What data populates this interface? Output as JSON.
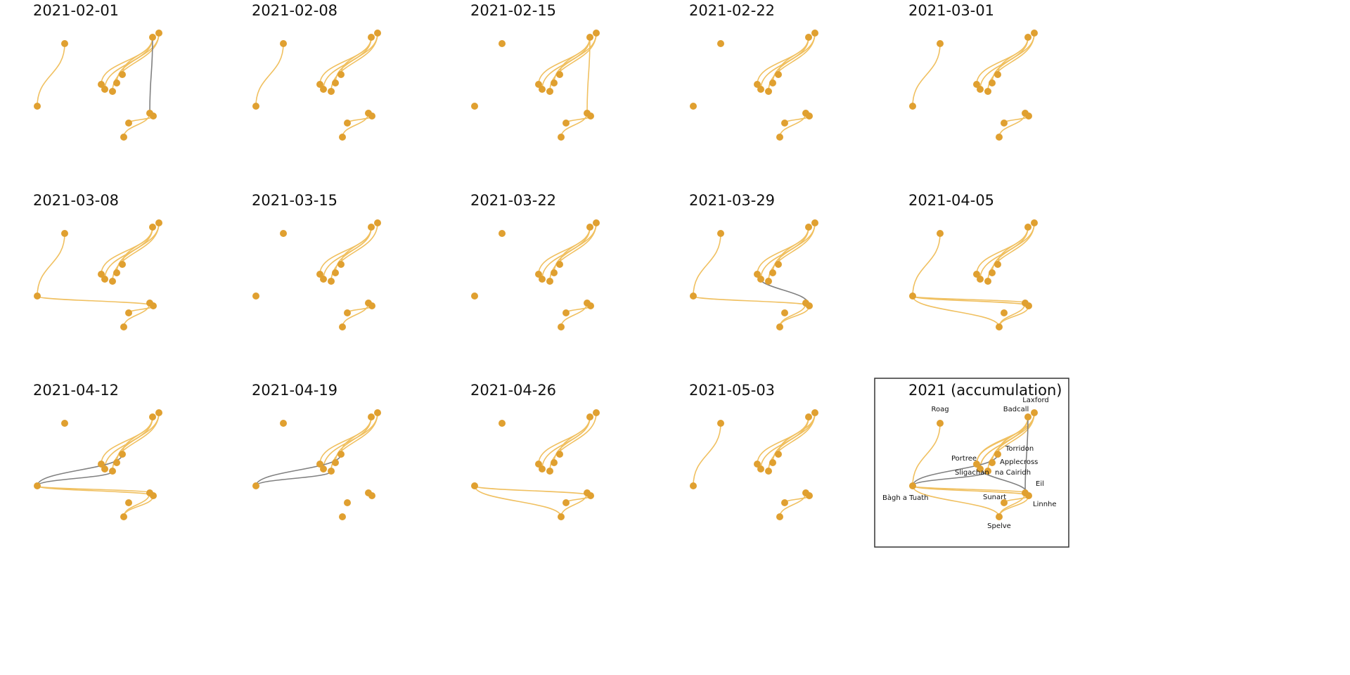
{
  "colors": {
    "background": "#ffffff",
    "node": "#e0a030",
    "edge_active": "#f0c060",
    "edge_new": "#808080",
    "title": "#111111",
    "frame": "#333333"
  },
  "panel_titles": [
    "2021-02-01",
    "2021-02-08",
    "2021-02-15",
    "2021-02-22",
    "2021-03-01",
    "2021-03-08",
    "2021-03-15",
    "2021-03-22",
    "2021-03-29",
    "2021-04-05",
    "2021-04-12",
    "2021-04-19",
    "2021-04-26",
    "2021-05-03"
  ],
  "accumulation_title": "2021 (accumulation)",
  "node_labels": {
    "laxford": "Laxford",
    "badcall": "Badcall",
    "roag": "Roag",
    "torridon": "Torridon",
    "portree": "Portree",
    "applecross": "Applecross",
    "sligachan": "Sligachan",
    "na_cairidh": "na Cairidh",
    "eil": "Eil",
    "bagh_a_tuath": "Bàgh a Tuath",
    "sunart": "Sunart",
    "linnhe": "Linnhe",
    "spelve": "Spelve"
  },
  "chart_data": {
    "type": "network-small-multiples",
    "panels": [
      {
        "title": "2021-02-01",
        "edges": [
          [
            "roag",
            "bagh_a_tuath"
          ],
          [
            "badcall",
            "torridon"
          ],
          [
            "badcall",
            "applecross"
          ],
          [
            "badcall",
            "portree"
          ],
          [
            "badcall",
            "sligachan"
          ],
          [
            "laxford",
            "na_cairidh"
          ],
          [
            "laxford",
            "applecross"
          ],
          [
            "linnhe",
            "sunart"
          ],
          [
            "eil",
            "spelve"
          ]
        ],
        "new_edges": [
          [
            "badcall",
            "eil"
          ]
        ]
      },
      {
        "title": "2021-02-08",
        "edges": [
          [
            "roag",
            "bagh_a_tuath"
          ],
          [
            "badcall",
            "torridon"
          ],
          [
            "badcall",
            "applecross"
          ],
          [
            "badcall",
            "portree"
          ],
          [
            "badcall",
            "sligachan"
          ],
          [
            "laxford",
            "na_cairidh"
          ],
          [
            "laxford",
            "applecross"
          ],
          [
            "linnhe",
            "sunart"
          ],
          [
            "eil",
            "spelve"
          ]
        ],
        "new_edges": []
      },
      {
        "title": "2021-02-15",
        "edges": [
          [
            "badcall",
            "torridon"
          ],
          [
            "badcall",
            "applecross"
          ],
          [
            "badcall",
            "portree"
          ],
          [
            "badcall",
            "sligachan"
          ],
          [
            "laxford",
            "na_cairidh"
          ],
          [
            "laxford",
            "applecross"
          ],
          [
            "badcall",
            "eil"
          ],
          [
            "linnhe",
            "sunart"
          ],
          [
            "eil",
            "spelve"
          ]
        ],
        "new_edges": []
      },
      {
        "title": "2021-02-22",
        "edges": [
          [
            "badcall",
            "torridon"
          ],
          [
            "badcall",
            "applecross"
          ],
          [
            "badcall",
            "portree"
          ],
          [
            "badcall",
            "sligachan"
          ],
          [
            "laxford",
            "na_cairidh"
          ],
          [
            "laxford",
            "applecross"
          ],
          [
            "linnhe",
            "sunart"
          ],
          [
            "eil",
            "spelve"
          ]
        ],
        "new_edges": []
      },
      {
        "title": "2021-03-01",
        "edges": [
          [
            "roag",
            "bagh_a_tuath"
          ],
          [
            "badcall",
            "torridon"
          ],
          [
            "badcall",
            "applecross"
          ],
          [
            "badcall",
            "portree"
          ],
          [
            "badcall",
            "sligachan"
          ],
          [
            "laxford",
            "na_cairidh"
          ],
          [
            "laxford",
            "applecross"
          ],
          [
            "linnhe",
            "sunart"
          ],
          [
            "eil",
            "spelve"
          ]
        ],
        "new_edges": []
      },
      {
        "title": "2021-03-08",
        "edges": [
          [
            "roag",
            "bagh_a_tuath"
          ],
          [
            "badcall",
            "torridon"
          ],
          [
            "badcall",
            "applecross"
          ],
          [
            "badcall",
            "portree"
          ],
          [
            "badcall",
            "sligachan"
          ],
          [
            "laxford",
            "na_cairidh"
          ],
          [
            "laxford",
            "applecross"
          ],
          [
            "bagh_a_tuath",
            "linnhe"
          ],
          [
            "linnhe",
            "sunart"
          ],
          [
            "eil",
            "spelve"
          ]
        ],
        "new_edges": []
      },
      {
        "title": "2021-03-15",
        "edges": [
          [
            "badcall",
            "torridon"
          ],
          [
            "badcall",
            "applecross"
          ],
          [
            "badcall",
            "portree"
          ],
          [
            "badcall",
            "sligachan"
          ],
          [
            "laxford",
            "na_cairidh"
          ],
          [
            "linnhe",
            "sunart"
          ],
          [
            "eil",
            "spelve"
          ]
        ],
        "new_edges": []
      },
      {
        "title": "2021-03-22",
        "edges": [
          [
            "badcall",
            "torridon"
          ],
          [
            "badcall",
            "applecross"
          ],
          [
            "badcall",
            "portree"
          ],
          [
            "badcall",
            "sligachan"
          ],
          [
            "laxford",
            "na_cairidh"
          ],
          [
            "laxford",
            "applecross"
          ],
          [
            "linnhe",
            "sunart"
          ],
          [
            "eil",
            "spelve"
          ]
        ],
        "new_edges": []
      },
      {
        "title": "2021-03-29",
        "edges": [
          [
            "roag",
            "bagh_a_tuath"
          ],
          [
            "badcall",
            "torridon"
          ],
          [
            "badcall",
            "applecross"
          ],
          [
            "badcall",
            "portree"
          ],
          [
            "badcall",
            "sligachan"
          ],
          [
            "laxford",
            "na_cairidh"
          ],
          [
            "laxford",
            "applecross"
          ],
          [
            "bagh_a_tuath",
            "linnhe"
          ],
          [
            "linnhe",
            "spelve"
          ],
          [
            "eil",
            "spelve"
          ]
        ],
        "new_edges": [
          [
            "portree",
            "linnhe"
          ]
        ]
      },
      {
        "title": "2021-04-05",
        "edges": [
          [
            "roag",
            "bagh_a_tuath"
          ],
          [
            "badcall",
            "torridon"
          ],
          [
            "badcall",
            "applecross"
          ],
          [
            "badcall",
            "portree"
          ],
          [
            "badcall",
            "sligachan"
          ],
          [
            "laxford",
            "na_cairidh"
          ],
          [
            "laxford",
            "applecross"
          ],
          [
            "bagh_a_tuath",
            "linnhe"
          ],
          [
            "bagh_a_tuath",
            "eil"
          ],
          [
            "bagh_a_tuath",
            "spelve"
          ],
          [
            "linnhe",
            "spelve"
          ],
          [
            "eil",
            "spelve"
          ]
        ],
        "new_edges": []
      },
      {
        "title": "2021-04-12",
        "edges": [
          [
            "badcall",
            "torridon"
          ],
          [
            "badcall",
            "applecross"
          ],
          [
            "badcall",
            "portree"
          ],
          [
            "badcall",
            "sligachan"
          ],
          [
            "laxford",
            "na_cairidh"
          ],
          [
            "laxford",
            "applecross"
          ],
          [
            "bagh_a_tuath",
            "linnhe"
          ],
          [
            "bagh_a_tuath",
            "eil"
          ],
          [
            "linnhe",
            "spelve"
          ],
          [
            "eil",
            "spelve"
          ]
        ],
        "new_edges": [
          [
            "bagh_a_tuath",
            "torridon"
          ],
          [
            "bagh_a_tuath",
            "na_cairidh"
          ]
        ]
      },
      {
        "title": "2021-04-19",
        "edges": [
          [
            "badcall",
            "torridon"
          ],
          [
            "badcall",
            "applecross"
          ],
          [
            "badcall",
            "portree"
          ],
          [
            "laxford",
            "sligachan"
          ],
          [
            "laxford",
            "na_cairidh"
          ]
        ],
        "new_edges": [
          [
            "bagh_a_tuath",
            "torridon"
          ],
          [
            "bagh_a_tuath",
            "na_cairidh"
          ]
        ]
      },
      {
        "title": "2021-04-26",
        "edges": [
          [
            "badcall",
            "torridon"
          ],
          [
            "badcall",
            "applecross"
          ],
          [
            "badcall",
            "portree"
          ],
          [
            "badcall",
            "sligachan"
          ],
          [
            "laxford",
            "na_cairidh"
          ],
          [
            "bagh_a_tuath",
            "linnhe"
          ],
          [
            "bagh_a_tuath",
            "spelve"
          ],
          [
            "spelve",
            "eil"
          ],
          [
            "linnhe",
            "sunart"
          ]
        ],
        "new_edges": []
      },
      {
        "title": "2021-05-03",
        "edges": [
          [
            "roag",
            "bagh_a_tuath"
          ],
          [
            "badcall",
            "torridon"
          ],
          [
            "badcall",
            "applecross"
          ],
          [
            "badcall",
            "portree"
          ],
          [
            "badcall",
            "sligachan"
          ],
          [
            "laxford",
            "na_cairidh"
          ],
          [
            "laxford",
            "applecross"
          ],
          [
            "laxford",
            "torridon"
          ],
          [
            "linnhe",
            "sunart"
          ],
          [
            "eil",
            "spelve"
          ]
        ],
        "new_edges": []
      }
    ],
    "accumulation": {
      "title": "2021 (accumulation)",
      "edges": [
        [
          "roag",
          "bagh_a_tuath"
        ],
        [
          "badcall",
          "torridon"
        ],
        [
          "badcall",
          "applecross"
        ],
        [
          "badcall",
          "portree"
        ],
        [
          "badcall",
          "sligachan"
        ],
        [
          "laxford",
          "na_cairidh"
        ],
        [
          "laxford",
          "applecross"
        ],
        [
          "laxford",
          "torridon"
        ],
        [
          "laxford",
          "portree"
        ],
        [
          "bagh_a_tuath",
          "linnhe"
        ],
        [
          "bagh_a_tuath",
          "eil"
        ],
        [
          "bagh_a_tuath",
          "spelve"
        ],
        [
          "linnhe",
          "spelve"
        ],
        [
          "linnhe",
          "sunart"
        ],
        [
          "eil",
          "spelve"
        ],
        [
          "badcall",
          "sligachan"
        ]
      ],
      "new_edges": [
        [
          "badcall",
          "eil"
        ],
        [
          "bagh_a_tuath",
          "torridon"
        ],
        [
          "bagh_a_tuath",
          "na_cairidh"
        ],
        [
          "portree",
          "linnhe"
        ]
      ]
    }
  }
}
